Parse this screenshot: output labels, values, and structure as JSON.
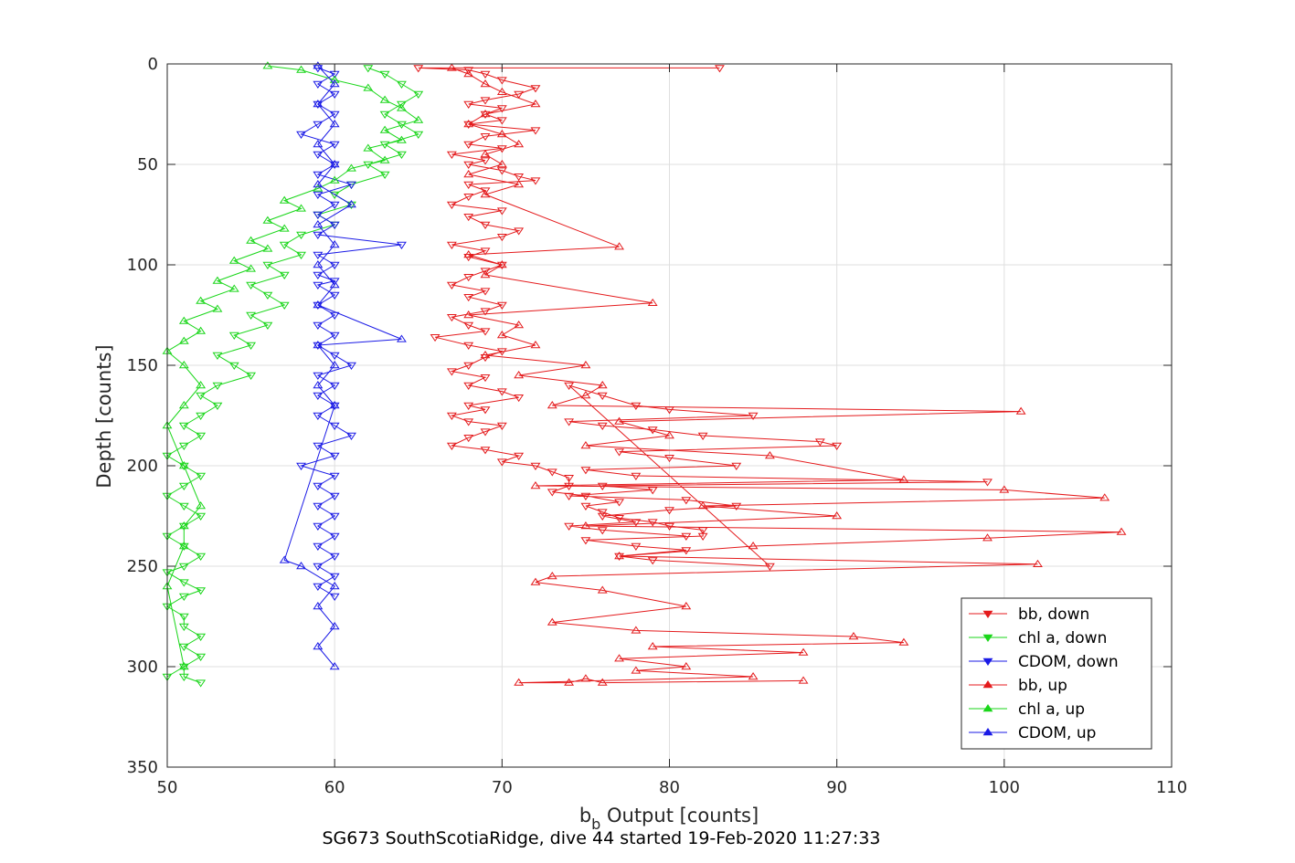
{
  "chart_data": {
    "type": "scatter",
    "title": "SG673 SouthScotiaRidge, dive 44 started 19-Feb-2020 11:27:33",
    "xlabel_main": "b",
    "xlabel_sub": "b",
    "xlabel_rest": " Output [counts]",
    "ylabel": "Depth [counts]",
    "xlim": [
      50,
      110
    ],
    "ylim": [
      0,
      350
    ],
    "y_reversed": true,
    "grid": true,
    "legend_position": "bottom-right",
    "xticks": [
      "50",
      "60",
      "70",
      "80",
      "90",
      "100",
      "110"
    ],
    "yticks": [
      "0",
      "50",
      "100",
      "150",
      "200",
      "250",
      "300",
      "350"
    ],
    "series": [
      {
        "name": "bb, down",
        "color": "#e41a1c",
        "marker": "triangle-down",
        "connected": true,
        "x": [
          83,
          65,
          68,
          69,
          70,
          72,
          71,
          69,
          68,
          70,
          69,
          70,
          68,
          72,
          69,
          68,
          70,
          67,
          69,
          68,
          70,
          71,
          72,
          68,
          69,
          68,
          67,
          70,
          68,
          69,
          71,
          70,
          67,
          69,
          68,
          70,
          69,
          68,
          67,
          69,
          68,
          70,
          69,
          67,
          68,
          69,
          66,
          68,
          70,
          69,
          68,
          67,
          69,
          68,
          70,
          71,
          68,
          69,
          67,
          68,
          70,
          69,
          68,
          67,
          69,
          71,
          70,
          72,
          73,
          74,
          74,
          73,
          75,
          77,
          75,
          76,
          77,
          79,
          80,
          82,
          82,
          75,
          78,
          81,
          77,
          79,
          86,
          74,
          76,
          78,
          80,
          85,
          74,
          76,
          79,
          82,
          89,
          90,
          77,
          80,
          84,
          75,
          78,
          99,
          76,
          79,
          74,
          81,
          84,
          80,
          76,
          78,
          74,
          76,
          81
        ],
        "y": [
          2,
          2,
          3,
          5,
          8,
          12,
          15,
          18,
          20,
          22,
          25,
          28,
          30,
          33,
          36,
          40,
          42,
          45,
          48,
          50,
          53,
          56,
          58,
          60,
          63,
          66,
          70,
          73,
          76,
          80,
          83,
          86,
          90,
          93,
          96,
          100,
          103,
          106,
          110,
          113,
          116,
          120,
          123,
          126,
          130,
          133,
          136,
          140,
          143,
          146,
          150,
          153,
          156,
          160,
          163,
          166,
          170,
          172,
          175,
          178,
          180,
          183,
          186,
          190,
          192,
          195,
          198,
          200,
          203,
          206,
          210,
          213,
          215,
          218,
          220,
          223,
          226,
          228,
          230,
          232,
          235,
          237,
          240,
          242,
          245,
          247,
          250,
          160,
          165,
          170,
          172,
          175,
          178,
          180,
          182,
          185,
          188,
          190,
          193,
          196,
          200,
          202,
          205,
          208,
          210,
          212,
          215,
          217,
          220,
          222,
          225,
          228,
          230,
          232,
          235
        ]
      },
      {
        "name": "chl a, down",
        "color": "#1ad61a",
        "marker": "triangle-down",
        "connected": true,
        "x": [
          62,
          63,
          64,
          65,
          64,
          63,
          64,
          65,
          63,
          64,
          62,
          63,
          61,
          60,
          61,
          59,
          60,
          58,
          57,
          58,
          56,
          57,
          55,
          56,
          57,
          55,
          56,
          54,
          55,
          53,
          54,
          55,
          53,
          52,
          53,
          52,
          51,
          52,
          51,
          50,
          51,
          52,
          51,
          50,
          51,
          52,
          51,
          50,
          51,
          52,
          51,
          50,
          51,
          52,
          51,
          50,
          51,
          51,
          52,
          51,
          52,
          50,
          51,
          51,
          52
        ],
        "y": [
          2,
          5,
          10,
          15,
          20,
          25,
          30,
          35,
          40,
          45,
          50,
          55,
          60,
          65,
          70,
          75,
          80,
          85,
          90,
          95,
          100,
          105,
          110,
          115,
          120,
          125,
          130,
          135,
          140,
          145,
          150,
          155,
          160,
          165,
          170,
          175,
          180,
          185,
          190,
          195,
          200,
          205,
          210,
          215,
          220,
          225,
          230,
          235,
          240,
          245,
          250,
          253,
          258,
          262,
          265,
          270,
          275,
          280,
          285,
          290,
          295,
          305,
          300,
          305,
          308
        ]
      },
      {
        "name": "CDOM, down",
        "color": "#1a1ae6",
        "marker": "triangle-down",
        "connected": true,
        "x": [
          59,
          60,
          59,
          60,
          59,
          60,
          59,
          58,
          60,
          59,
          60,
          59,
          61,
          59,
          60,
          59,
          60,
          59,
          64,
          59,
          60,
          59,
          60,
          59,
          60,
          59,
          60,
          59,
          60,
          59,
          60,
          61,
          59,
          60,
          59,
          60,
          59,
          60,
          61,
          59,
          60,
          58,
          60,
          59,
          60,
          59,
          60,
          59,
          60,
          59,
          60,
          59,
          60,
          59,
          60
        ],
        "y": [
          2,
          5,
          10,
          15,
          20,
          25,
          30,
          35,
          40,
          45,
          50,
          55,
          60,
          65,
          70,
          75,
          80,
          85,
          90,
          95,
          100,
          105,
          108,
          110,
          115,
          120,
          125,
          130,
          135,
          140,
          145,
          150,
          155,
          160,
          165,
          170,
          175,
          180,
          185,
          190,
          195,
          200,
          205,
          210,
          215,
          220,
          225,
          230,
          235,
          240,
          245,
          250,
          255,
          260,
          265
        ]
      },
      {
        "name": "bb, up",
        "color": "#e41a1c",
        "marker": "triangle-up",
        "connected": true,
        "x": [
          67,
          68,
          69,
          70,
          72,
          69,
          68,
          70,
          71,
          69,
          70,
          68,
          71,
          69,
          77,
          68,
          70,
          69,
          79,
          68,
          71,
          70,
          72,
          69,
          75,
          71,
          76,
          75,
          73,
          101,
          77,
          80,
          75,
          86,
          94,
          72,
          100,
          106,
          82,
          90,
          75,
          107,
          99,
          85,
          77,
          102,
          73,
          72,
          76,
          81,
          73,
          78,
          91,
          94,
          79,
          88,
          77,
          81,
          78,
          85,
          71,
          74,
          75,
          76,
          88
        ],
        "y": [
          2,
          5,
          10,
          14,
          20,
          25,
          30,
          35,
          40,
          45,
          50,
          55,
          60,
          65,
          91,
          95,
          100,
          105,
          119,
          125,
          130,
          135,
          140,
          145,
          150,
          155,
          160,
          165,
          170,
          173,
          178,
          185,
          190,
          195,
          207,
          210,
          212,
          216,
          220,
          225,
          230,
          233,
          236,
          240,
          245,
          249,
          255,
          258,
          262,
          270,
          278,
          282,
          285,
          288,
          290,
          293,
          296,
          300,
          302,
          305,
          308,
          308,
          306,
          308,
          307
        ]
      },
      {
        "name": "chl a, up",
        "color": "#1ad61a",
        "marker": "triangle-up",
        "connected": true,
        "x": [
          56,
          58,
          60,
          62,
          63,
          64,
          65,
          63,
          64,
          62,
          63,
          61,
          60,
          59,
          57,
          58,
          56,
          57,
          55,
          56,
          54,
          55,
          53,
          54,
          52,
          53,
          51,
          52,
          51,
          50,
          51,
          52,
          51,
          50,
          51,
          52,
          51,
          51,
          50,
          51
        ],
        "y": [
          1,
          3,
          8,
          12,
          18,
          22,
          28,
          33,
          38,
          42,
          48,
          52,
          58,
          62,
          68,
          72,
          78,
          82,
          88,
          92,
          98,
          102,
          108,
          112,
          118,
          122,
          128,
          133,
          138,
          143,
          150,
          160,
          170,
          180,
          200,
          220,
          230,
          240,
          260,
          300
        ]
      },
      {
        "name": "CDOM, up",
        "color": "#1a1ae6",
        "marker": "triangle-up",
        "connected": true,
        "x": [
          59,
          60,
          59,
          60,
          59,
          60,
          59,
          61,
          59,
          60,
          59,
          60,
          59,
          64,
          59,
          60,
          59,
          60,
          57,
          58,
          60,
          59,
          60,
          59,
          60
        ],
        "y": [
          1,
          10,
          20,
          30,
          40,
          50,
          60,
          70,
          80,
          90,
          100,
          110,
          120,
          137,
          140,
          150,
          160,
          170,
          247,
          250,
          260,
          270,
          280,
          290,
          300
        ]
      }
    ]
  }
}
